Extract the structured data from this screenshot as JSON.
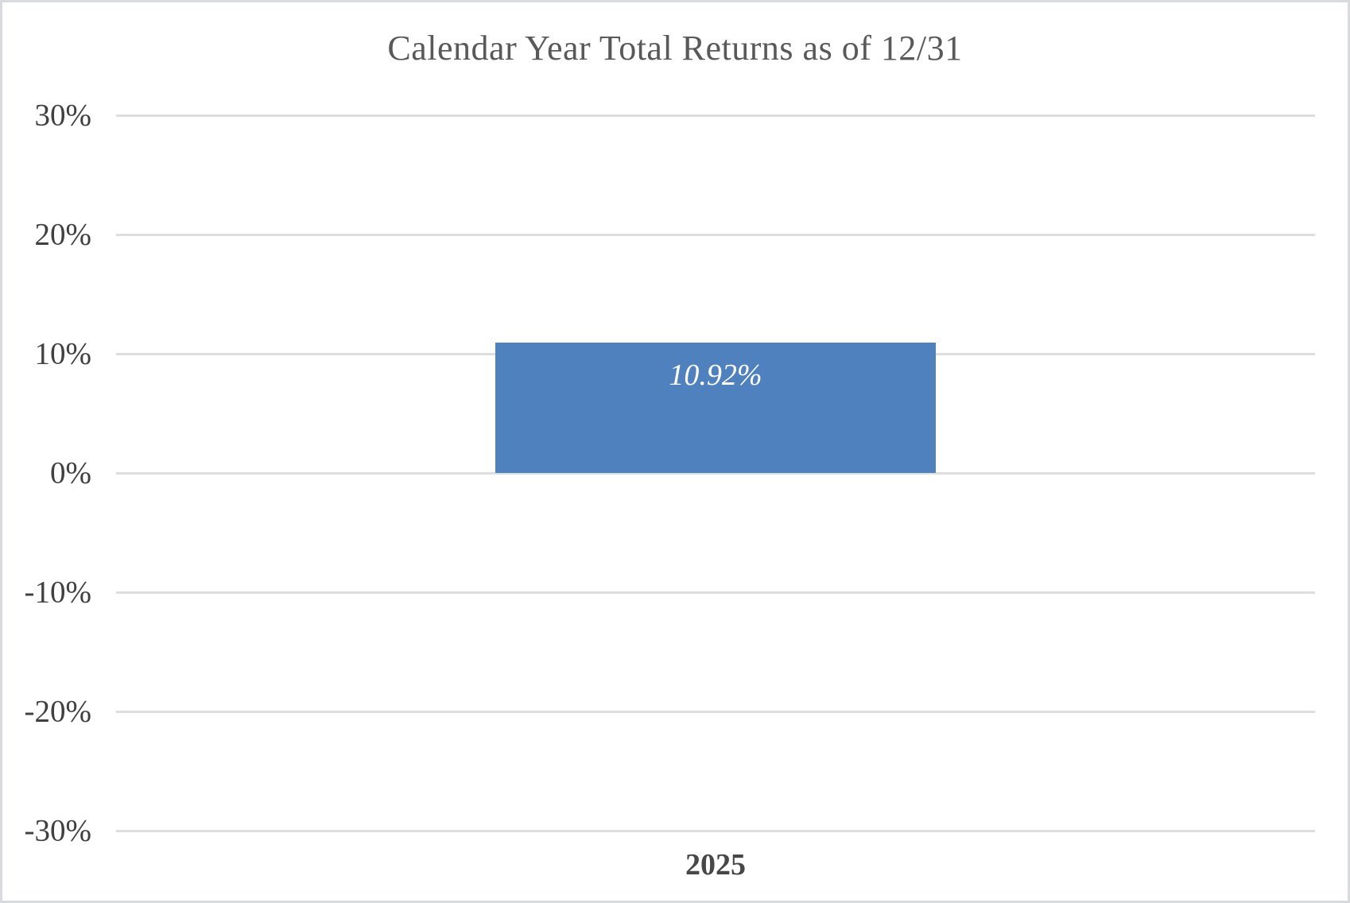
{
  "chart_data": {
    "type": "bar",
    "title": "Calendar Year Total Returns as of 12/31",
    "categories": [
      "2025"
    ],
    "values": [
      10.92
    ],
    "value_labels": [
      "10.92%"
    ],
    "xlabel": "",
    "ylabel": "",
    "ylim": [
      -30,
      30
    ],
    "yticks": [
      30,
      20,
      10,
      0,
      -10,
      -20,
      -30
    ],
    "ytick_labels": [
      "30%",
      "20%",
      "10%",
      "0%",
      "-10%",
      "-20%",
      "-30%"
    ],
    "grid": true,
    "legend": false,
    "colors": {
      "bar": "#4E81BD",
      "bar_value_label": "#FFFFFF",
      "title": "#595959",
      "tick_label": "#404040",
      "category_label": "#474747",
      "gridline": "#DEDEDE",
      "canvas_border": "#D8DADB",
      "background": "#FFFFFF"
    }
  }
}
